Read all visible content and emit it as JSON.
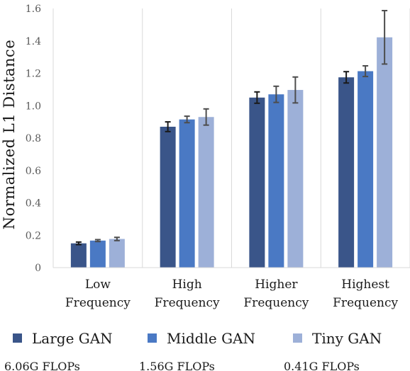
{
  "chart_data": {
    "type": "bar",
    "title": "",
    "xlabel": "",
    "ylabel": "Normalized L1 Distance",
    "ylim": [
      0,
      1.6
    ],
    "yticks": [
      "0",
      "0.2",
      "0.4",
      "0.6",
      "0.8",
      "1.0",
      "1.2",
      "1.4",
      "1.6"
    ],
    "grid": "vertical lines between categories",
    "categories": [
      [
        "Low",
        "Frequency"
      ],
      [
        "High",
        "Frequency"
      ],
      [
        "Higher",
        "Frequency"
      ],
      [
        "Highest",
        "Frequency"
      ]
    ],
    "series": [
      {
        "name": "Large GAN",
        "color": "#3a5589",
        "values": [
          0.15,
          0.87,
          1.05,
          1.175
        ],
        "errors": [
          0.008,
          0.03,
          0.035,
          0.035
        ]
      },
      {
        "name": "Middle GAN",
        "color": "#4a79c4",
        "values": [
          0.167,
          0.915,
          1.07,
          1.213
        ],
        "errors": [
          0.006,
          0.02,
          0.05,
          0.033
        ]
      },
      {
        "name": "Tiny GAN",
        "color": "#9db0d8",
        "values": [
          0.177,
          0.93,
          1.097,
          1.422
        ],
        "errors": [
          0.01,
          0.05,
          0.08,
          0.165
        ]
      }
    ],
    "legend_position": "bottom",
    "legend_notes": [
      "6.06G FLOPs",
      "1.56G FLOPs",
      "0.41G FLOPs"
    ]
  }
}
